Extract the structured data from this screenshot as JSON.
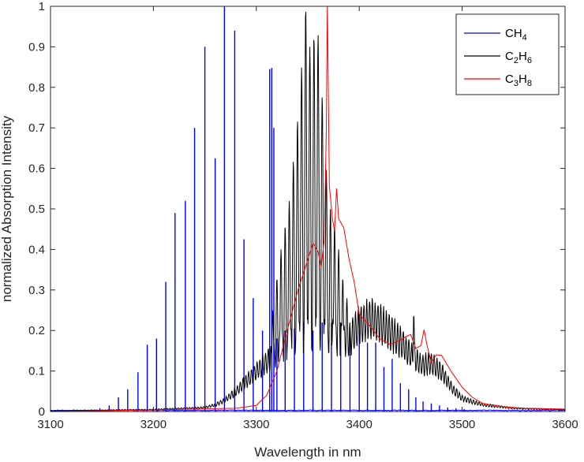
{
  "chart_data": {
    "type": "line",
    "xlabel": "Wavelength in nm",
    "ylabel": "normalized Absorption Intensity",
    "xlim": [
      3100,
      3600
    ],
    "ylim": [
      0,
      1
    ],
    "x_ticks": [
      3100,
      3200,
      3300,
      3400,
      3500,
      3600
    ],
    "y_ticks": [
      0,
      0.1,
      0.2,
      0.3,
      0.4,
      0.5,
      0.6,
      0.7,
      0.8,
      0.9,
      1
    ],
    "grid": false,
    "legend_position": "top-right",
    "series": [
      {
        "name": "CH4",
        "label_base": "CH",
        "label_sub": "4",
        "color": "#0000ff",
        "style": "lines",
        "lines": [
          {
            "x": 3140,
            "y": 0.005
          },
          {
            "x": 3148,
            "y": 0.008
          },
          {
            "x": 3157,
            "y": 0.015
          },
          {
            "x": 3166,
            "y": 0.035
          },
          {
            "x": 3175,
            "y": 0.055
          },
          {
            "x": 3185,
            "y": 0.097
          },
          {
            "x": 3194,
            "y": 0.165
          },
          {
            "x": 3203,
            "y": 0.18
          },
          {
            "x": 3212,
            "y": 0.32
          },
          {
            "x": 3221,
            "y": 0.49
          },
          {
            "x": 3231,
            "y": 0.52
          },
          {
            "x": 3240,
            "y": 0.7
          },
          {
            "x": 3250,
            "y": 0.9
          },
          {
            "x": 3260,
            "y": 0.625
          },
          {
            "x": 3269,
            "y": 1.0
          },
          {
            "x": 3279,
            "y": 0.94
          },
          {
            "x": 3288,
            "y": 0.425
          },
          {
            "x": 3297,
            "y": 0.28
          },
          {
            "x": 3306,
            "y": 0.2
          },
          {
            "x": 3313,
            "y": 0.845
          },
          {
            "x": 3315,
            "y": 0.848
          },
          {
            "x": 3317,
            "y": 0.7
          },
          {
            "x": 3320,
            "y": 0.18
          },
          {
            "x": 3328,
            "y": 0.2
          },
          {
            "x": 3337,
            "y": 0.205
          },
          {
            "x": 3346,
            "y": 0.22
          },
          {
            "x": 3355,
            "y": 0.2
          },
          {
            "x": 3364,
            "y": 0.22
          },
          {
            "x": 3373,
            "y": 0.22
          },
          {
            "x": 3382,
            "y": 0.22
          },
          {
            "x": 3391,
            "y": 0.2
          },
          {
            "x": 3400,
            "y": 0.24
          },
          {
            "x": 3408,
            "y": 0.17
          },
          {
            "x": 3416,
            "y": 0.17
          },
          {
            "x": 3424,
            "y": 0.11
          },
          {
            "x": 3432,
            "y": 0.13
          },
          {
            "x": 3440,
            "y": 0.07
          },
          {
            "x": 3448,
            "y": 0.055
          },
          {
            "x": 3455,
            "y": 0.035
          },
          {
            "x": 3462,
            "y": 0.025
          },
          {
            "x": 3470,
            "y": 0.02
          },
          {
            "x": 3478,
            "y": 0.015
          },
          {
            "x": 3486,
            "y": 0.01
          },
          {
            "x": 3494,
            "y": 0.008
          },
          {
            "x": 3502,
            "y": 0.006
          }
        ]
      },
      {
        "name": "C2H6",
        "label_base": [
          "C",
          "H"
        ],
        "label_sub": [
          "2",
          "6"
        ],
        "color": "#000000",
        "style": "envelope_peaks",
        "envelope": [
          [
            3100,
            0.002
          ],
          [
            3200,
            0.006
          ],
          [
            3250,
            0.012
          ],
          [
            3260,
            0.02
          ],
          [
            3270,
            0.035
          ],
          [
            3280,
            0.06
          ],
          [
            3290,
            0.09
          ],
          [
            3300,
            0.12
          ],
          [
            3310,
            0.15
          ],
          [
            3320,
            0.18
          ],
          [
            3330,
            0.2
          ],
          [
            3340,
            0.22
          ],
          [
            3350,
            0.235
          ],
          [
            3360,
            0.24
          ],
          [
            3370,
            0.23
          ],
          [
            3380,
            0.215
          ],
          [
            3390,
            0.215
          ],
          [
            3400,
            0.26
          ],
          [
            3410,
            0.28
          ],
          [
            3420,
            0.265
          ],
          [
            3430,
            0.24
          ],
          [
            3440,
            0.21
          ],
          [
            3450,
            0.17
          ],
          [
            3460,
            0.14
          ],
          [
            3470,
            0.145
          ],
          [
            3480,
            0.12
          ],
          [
            3490,
            0.07
          ],
          [
            3500,
            0.04
          ],
          [
            3520,
            0.02
          ],
          [
            3550,
            0.01
          ],
          [
            3600,
            0.005
          ]
        ],
        "peaks": [
          [
            3316,
            0.25
          ],
          [
            3320,
            0.33
          ],
          [
            3324,
            0.4
          ],
          [
            3328,
            0.46
          ],
          [
            3332,
            0.52
          ],
          [
            3336,
            0.62
          ],
          [
            3340,
            0.72
          ],
          [
            3344,
            0.85
          ],
          [
            3348,
            1.0
          ],
          [
            3352,
            0.9
          ],
          [
            3356,
            0.93
          ],
          [
            3360,
            0.93
          ],
          [
            3364,
            0.78
          ],
          [
            3368,
            0.6
          ],
          [
            3372,
            0.5
          ],
          [
            3376,
            0.46
          ],
          [
            3380,
            0.4
          ],
          [
            3384,
            0.33
          ],
          [
            3388,
            0.28
          ]
        ]
      },
      {
        "name": "C3H8",
        "label_base": [
          "C",
          "H"
        ],
        "label_sub": [
          "3",
          "8"
        ],
        "color": "#ff0000",
        "style": "curve",
        "points": [
          [
            3100,
            0.0
          ],
          [
            3200,
            0.004
          ],
          [
            3280,
            0.008
          ],
          [
            3300,
            0.015
          ],
          [
            3310,
            0.04
          ],
          [
            3320,
            0.1
          ],
          [
            3330,
            0.2
          ],
          [
            3340,
            0.3
          ],
          [
            3350,
            0.38
          ],
          [
            3355,
            0.41
          ],
          [
            3360,
            0.4
          ],
          [
            3363,
            0.35
          ],
          [
            3366,
            0.43
          ],
          [
            3368,
            0.7
          ],
          [
            3369,
            1.0
          ],
          [
            3371,
            0.55
          ],
          [
            3374,
            0.48
          ],
          [
            3376,
            0.45
          ],
          [
            3378,
            0.555
          ],
          [
            3380,
            0.48
          ],
          [
            3385,
            0.45
          ],
          [
            3390,
            0.38
          ],
          [
            3395,
            0.32
          ],
          [
            3400,
            0.24
          ],
          [
            3410,
            0.21
          ],
          [
            3420,
            0.175
          ],
          [
            3430,
            0.16
          ],
          [
            3440,
            0.17
          ],
          [
            3445,
            0.19
          ],
          [
            3450,
            0.185
          ],
          [
            3455,
            0.16
          ],
          [
            3460,
            0.16
          ],
          [
            3463,
            0.205
          ],
          [
            3466,
            0.16
          ],
          [
            3470,
            0.12
          ],
          [
            3475,
            0.14
          ],
          [
            3480,
            0.14
          ],
          [
            3490,
            0.1
          ],
          [
            3500,
            0.06
          ],
          [
            3510,
            0.035
          ],
          [
            3520,
            0.02
          ],
          [
            3540,
            0.012
          ],
          [
            3560,
            0.008
          ],
          [
            3600,
            0.006
          ]
        ]
      }
    ]
  }
}
